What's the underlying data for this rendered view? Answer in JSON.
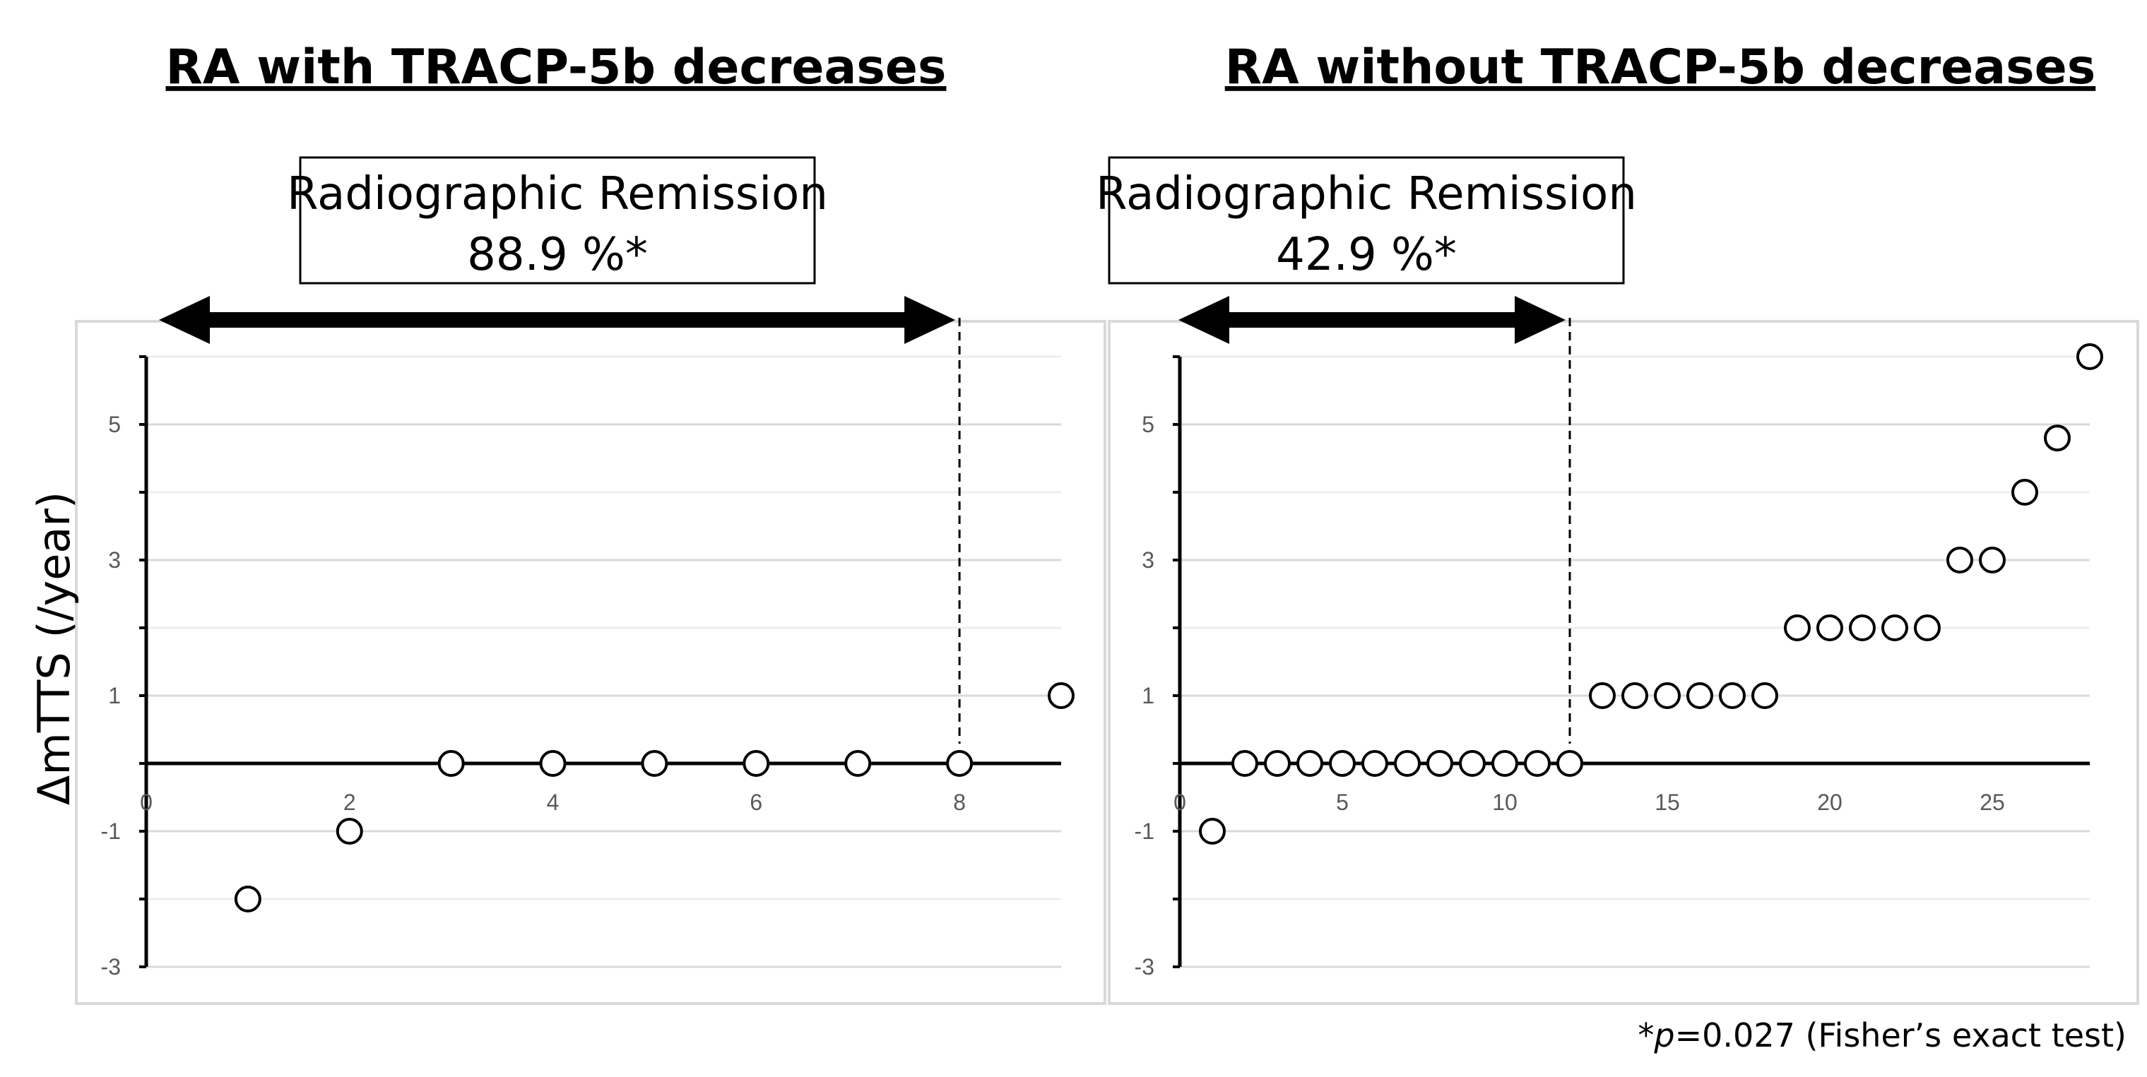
{
  "chart_data": [
    {
      "type": "scatter",
      "title": "RA with TRACP-5b decreases",
      "ylabel": "ΔmTTS (/year)",
      "annotation": {
        "label": "Radiographic Remission",
        "value": "88.9 %*",
        "cutoff_x": 8
      },
      "xlim": [
        0,
        9
      ],
      "ylim": [
        -3,
        6
      ],
      "x_ticks": [
        0,
        2,
        4,
        6,
        8
      ],
      "x_tick_labels": [
        "0",
        "2",
        "4",
        "6",
        "8"
      ],
      "y_ticks": [
        -3,
        -1,
        1,
        3,
        5
      ],
      "y_tick_labels": [
        "-3",
        "-1",
        "1",
        "3",
        "5"
      ],
      "grid": true,
      "points": [
        {
          "x": 1,
          "y": -2
        },
        {
          "x": 2,
          "y": -1
        },
        {
          "x": 3,
          "y": 0
        },
        {
          "x": 4,
          "y": 0
        },
        {
          "x": 5,
          "y": 0
        },
        {
          "x": 6,
          "y": 0
        },
        {
          "x": 7,
          "y": 0
        },
        {
          "x": 8,
          "y": 0
        },
        {
          "x": 9,
          "y": 1
        }
      ]
    },
    {
      "type": "scatter",
      "title": "RA without TRACP-5b decreases",
      "annotation": {
        "label": "Radiographic Remission",
        "value": "42.9 %*",
        "cutoff_x": 12
      },
      "xlim": [
        0,
        28
      ],
      "ylim": [
        -3,
        6
      ],
      "x_ticks": [
        0,
        5,
        10,
        15,
        20,
        25
      ],
      "x_tick_labels": [
        "0",
        "5",
        "10",
        "15",
        "20",
        "25"
      ],
      "y_ticks": [
        -3,
        -1,
        1,
        3,
        5
      ],
      "y_tick_labels": [
        "-3",
        "-1",
        "1",
        "3",
        "5"
      ],
      "grid": true,
      "points": [
        {
          "x": 1,
          "y": -1
        },
        {
          "x": 2,
          "y": 0
        },
        {
          "x": 3,
          "y": 0
        },
        {
          "x": 4,
          "y": 0
        },
        {
          "x": 5,
          "y": 0
        },
        {
          "x": 6,
          "y": 0
        },
        {
          "x": 7,
          "y": 0
        },
        {
          "x": 8,
          "y": 0
        },
        {
          "x": 9,
          "y": 0
        },
        {
          "x": 10,
          "y": 0
        },
        {
          "x": 11,
          "y": 0
        },
        {
          "x": 12,
          "y": 0
        },
        {
          "x": 13,
          "y": 1
        },
        {
          "x": 14,
          "y": 1
        },
        {
          "x": 15,
          "y": 1
        },
        {
          "x": 16,
          "y": 1
        },
        {
          "x": 17,
          "y": 1
        },
        {
          "x": 18,
          "y": 1
        },
        {
          "x": 19,
          "y": 2
        },
        {
          "x": 20,
          "y": 2
        },
        {
          "x": 21,
          "y": 2
        },
        {
          "x": 22,
          "y": 2
        },
        {
          "x": 23,
          "y": 2
        },
        {
          "x": 24,
          "y": 3
        },
        {
          "x": 25,
          "y": 3
        },
        {
          "x": 26,
          "y": 4
        },
        {
          "x": 27,
          "y": 4.8
        },
        {
          "x": 28,
          "y": 6
        }
      ]
    }
  ],
  "footnote": {
    "star": "*",
    "p": "p",
    "text": "=0.027 (Fisher’s exact test)"
  }
}
